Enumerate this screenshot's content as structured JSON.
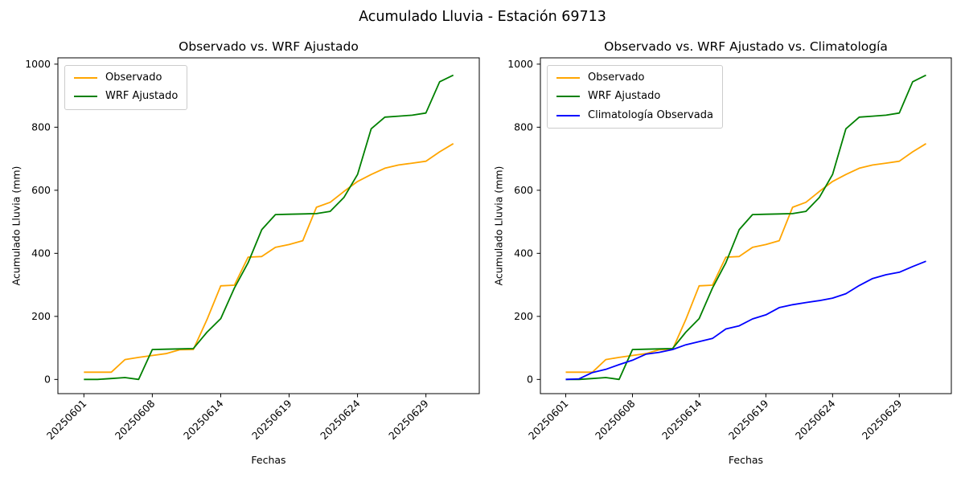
{
  "figure": {
    "title": "Acumulado Lluvia - Estación 69713"
  },
  "chart_data": [
    {
      "type": "line",
      "title": "Observado vs. WRF Ajustado",
      "xlabel": "Fechas",
      "ylabel": "Acumulado Lluvia (mm)",
      "x_tick_indices": [
        0,
        5,
        10,
        15,
        20,
        25
      ],
      "x_tick_labels": [
        "20250601",
        "20250608",
        "20250614",
        "20250619",
        "20250624",
        "20250629"
      ],
      "y_ticks": [
        0,
        200,
        400,
        600,
        800,
        1000
      ],
      "ylim": [
        0,
        1000
      ],
      "n_points": 28,
      "grid": false,
      "legend_position": "upper left",
      "series": [
        {
          "name": "Observado",
          "color": "#ffa500",
          "values": [
            23,
            23,
            23,
            63,
            70,
            76,
            82,
            94,
            95,
            190,
            297,
            299,
            388,
            390,
            419,
            428,
            440,
            546,
            562,
            596,
            628,
            650,
            670,
            680,
            686,
            692,
            722,
            748
          ]
        },
        {
          "name": "WRF Ajustado",
          "color": "#008000",
          "values": [
            0,
            0,
            3,
            6,
            0,
            95,
            96,
            97,
            98,
            150,
            193,
            290,
            370,
            475,
            523,
            524,
            525,
            526,
            533,
            577,
            650,
            795,
            832,
            835,
            838,
            845,
            944,
            965
          ]
        }
      ]
    },
    {
      "type": "line",
      "title": "Observado vs. WRF Ajustado vs. Climatología",
      "xlabel": "Fechas",
      "ylabel": "Acumulado Lluvia (mm)",
      "x_tick_indices": [
        0,
        5,
        10,
        15,
        20,
        25
      ],
      "x_tick_labels": [
        "20250601",
        "20250608",
        "20250614",
        "20250619",
        "20250624",
        "20250629"
      ],
      "y_ticks": [
        0,
        200,
        400,
        600,
        800,
        1000
      ],
      "ylim": [
        0,
        1000
      ],
      "n_points": 28,
      "grid": false,
      "legend_position": "upper left",
      "series": [
        {
          "name": "Observado",
          "color": "#ffa500",
          "values": [
            23,
            23,
            23,
            63,
            70,
            76,
            82,
            94,
            95,
            190,
            297,
            299,
            388,
            390,
            419,
            428,
            440,
            546,
            562,
            596,
            628,
            650,
            670,
            680,
            686,
            692,
            722,
            748
          ]
        },
        {
          "name": "WRF Ajustado",
          "color": "#008000",
          "values": [
            0,
            0,
            3,
            6,
            0,
            95,
            96,
            97,
            98,
            150,
            193,
            290,
            370,
            475,
            523,
            524,
            525,
            526,
            533,
            577,
            650,
            795,
            832,
            835,
            838,
            845,
            944,
            965
          ]
        },
        {
          "name": "Climatología Observada",
          "color": "#0000ff",
          "values": [
            0,
            2,
            22,
            32,
            47,
            61,
            80,
            86,
            95,
            110,
            120,
            130,
            160,
            170,
            192,
            205,
            228,
            237,
            244,
            250,
            258,
            272,
            298,
            320,
            332,
            340,
            358,
            375
          ]
        }
      ]
    }
  ]
}
